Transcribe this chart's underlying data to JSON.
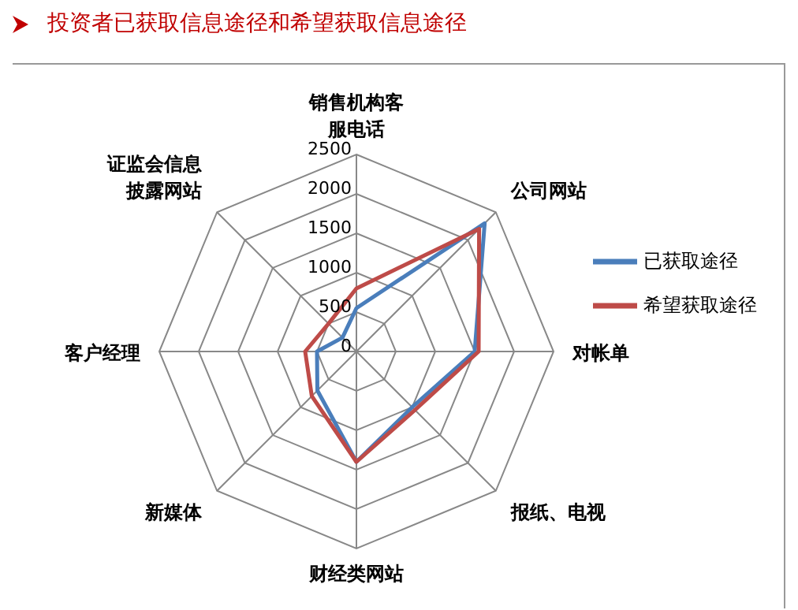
{
  "chart_data": {
    "type": "radar",
    "title": "投资者已获取信息途径和希望获取信息途径",
    "categories": [
      "销售机构客服电话",
      "公司网站",
      "对帐单",
      "报纸、电视",
      "财经类网站",
      "新媒体",
      "客户经理",
      "证监会信息披露网站"
    ],
    "series": [
      {
        "name": "已获取途径",
        "color": "#4a7ebb",
        "values": [
          550,
          2300,
          1500,
          1000,
          1400,
          700,
          500,
          250
        ]
      },
      {
        "name": "希望获取途径",
        "color": "#be4b48",
        "values": [
          800,
          2200,
          1550,
          1050,
          1400,
          800,
          650,
          500
        ]
      }
    ],
    "ylim": [
      0,
      2500
    ],
    "yticks": [
      0,
      500,
      1000,
      1500,
      2000,
      2500
    ],
    "grid": true,
    "legend": "right",
    "marker": "none",
    "line_style": "solid"
  }
}
